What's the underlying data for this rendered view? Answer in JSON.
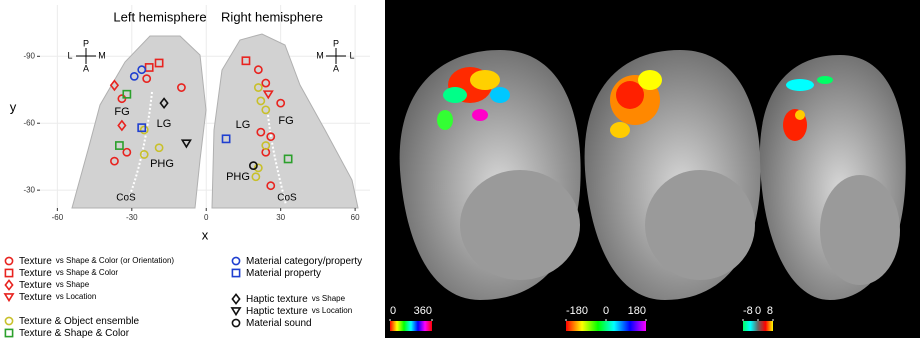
{
  "chart_data": {
    "type": "scatter",
    "panel_titles": [
      "Left hemisphere",
      "Right hemisphere"
    ],
    "x_label": "x",
    "y_label": "y",
    "xlim": [
      -67,
      66
    ],
    "ylim": [
      -22,
      -113
    ],
    "xticks": [
      -60,
      -30,
      0,
      30,
      60
    ],
    "yticks": [
      -90,
      -60,
      -30
    ],
    "grid": true,
    "annotations": [
      "FG",
      "LG",
      "PHG",
      "CoS",
      "LG",
      "FG",
      "PHG",
      "CoS",
      "L",
      "M",
      "P",
      "A",
      "M",
      "L",
      "P",
      "A"
    ],
    "series": [
      {
        "name": "Texture",
        "condition": "vs Shape & Color (or Orientation)",
        "marker": "circle",
        "color": "#e8231f",
        "x": [
          -34,
          -32,
          -37,
          -24,
          -10,
          24,
          30,
          22,
          26,
          24,
          26,
          21
        ],
        "y": [
          -71,
          -47,
          -43,
          -80,
          -76,
          -78,
          -69,
          -56,
          -54,
          -47,
          -32,
          -84
        ]
      },
      {
        "name": "Texture",
        "condition": "vs Shape & Color",
        "marker": "square",
        "color": "#e8231f",
        "x": [
          -19,
          -23,
          16
        ],
        "y": [
          -87,
          -85,
          -88
        ]
      },
      {
        "name": "Texture",
        "condition": "vs Shape",
        "marker": "diamond",
        "color": "#e8231f",
        "x": [
          -37,
          -34
        ],
        "y": [
          -77,
          -59
        ]
      },
      {
        "name": "Texture",
        "condition": "vs Location",
        "marker": "triangle",
        "color": "#e8231f",
        "x": [
          25
        ],
        "y": [
          -73
        ]
      },
      {
        "name": "Texture & Object ensemble",
        "marker": "circle",
        "color": "#c8c02a",
        "x": [
          -25,
          -25,
          -19,
          21,
          22,
          24,
          24,
          21,
          20
        ],
        "y": [
          -57,
          -46,
          -49,
          -76,
          -70,
          -66,
          -50,
          -40,
          -36
        ]
      },
      {
        "name": "Texture & Shape & Color",
        "marker": "square",
        "color": "#2ca02c",
        "x": [
          -32,
          -35,
          33
        ],
        "y": [
          -73,
          -50,
          -44
        ]
      },
      {
        "name": "Material category/property",
        "marker": "circle",
        "color": "#1f3fd0",
        "x": [
          -26,
          -29
        ],
        "y": [
          -84,
          -81
        ]
      },
      {
        "name": "Material property",
        "marker": "square",
        "color": "#1f3fd0",
        "x": [
          -26,
          8
        ],
        "y": [
          -58,
          -53
        ]
      },
      {
        "name": "Haptic texture",
        "condition": "vs Shape",
        "marker": "diamond",
        "color": "#111111",
        "x": [
          -17
        ],
        "y": [
          -69
        ]
      },
      {
        "name": "Haptic texture",
        "condition": "vs Location",
        "marker": "triangle",
        "color": "#111111",
        "x": [
          -8
        ],
        "y": [
          -51
        ]
      },
      {
        "name": "Material sound",
        "marker": "circle",
        "color": "#111111",
        "x": [
          19
        ],
        "y": [
          -41
        ]
      }
    ]
  },
  "brain_maps": {
    "colorbars": [
      {
        "ticks": [
          0,
          360
        ],
        "colors": [
          "#ff0000",
          "#ffff00",
          "#00ff00",
          "#00ffff",
          "#0000ff",
          "#ff00ff",
          "#ff0000"
        ]
      },
      {
        "ticks": [
          -180,
          0,
          180
        ],
        "colors": [
          "#ff0000",
          "#ffff00",
          "#00ff00",
          "#00ffff",
          "#0000ff",
          "#ff00ff"
        ]
      },
      {
        "ticks": [
          -8,
          0,
          8
        ],
        "colors": [
          "#00ff66",
          "#00ffff",
          "#666666",
          "#ff0000",
          "#ffff00"
        ]
      }
    ]
  }
}
